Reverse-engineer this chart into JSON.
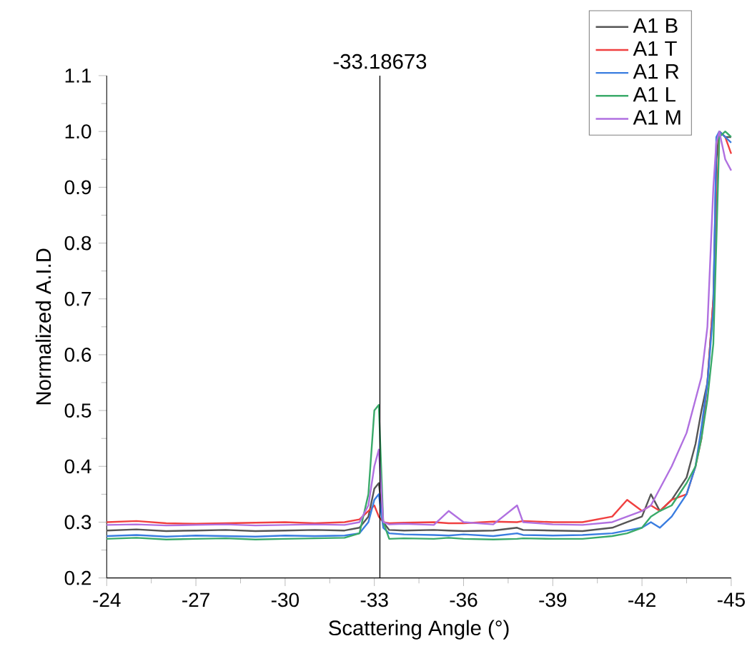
{
  "chart_data": {
    "type": "line",
    "xlabel": "Scattering Angle (°)",
    "ylabel": "Normalized A.I.D",
    "x": [
      -24,
      -25,
      -26,
      -27,
      -28,
      -29,
      -30,
      -31,
      -32,
      -32.5,
      -32.8,
      -33.0,
      -33.15,
      -33.3,
      -33.5,
      -34,
      -35,
      -35.5,
      -36,
      -37,
      -37.8,
      -38,
      -39,
      -40,
      -41,
      -41.5,
      -42,
      -42.3,
      -42.6,
      -43,
      -43.5,
      -43.8,
      -44,
      -44.2,
      -44.4,
      -44.5,
      -44.6,
      -44.8,
      -45
    ],
    "series": [
      {
        "name": "A1 B",
        "color": "#555555",
        "values": [
          0.285,
          0.287,
          0.284,
          0.285,
          0.286,
          0.284,
          0.285,
          0.286,
          0.285,
          0.29,
          0.31,
          0.36,
          0.37,
          0.3,
          0.286,
          0.285,
          0.286,
          0.285,
          0.284,
          0.285,
          0.29,
          0.286,
          0.285,
          0.284,
          0.29,
          0.3,
          0.31,
          0.35,
          0.32,
          0.34,
          0.38,
          0.44,
          0.5,
          0.55,
          0.7,
          0.95,
          1.0,
          0.99,
          0.99
        ]
      },
      {
        "name": "A1 T",
        "color": "#f04040",
        "values": [
          0.3,
          0.302,
          0.298,
          0.297,
          0.298,
          0.299,
          0.3,
          0.298,
          0.3,
          0.305,
          0.32,
          0.33,
          0.31,
          0.3,
          0.298,
          0.299,
          0.3,
          0.298,
          0.298,
          0.301,
          0.3,
          0.302,
          0.3,
          0.3,
          0.31,
          0.34,
          0.32,
          0.33,
          0.32,
          0.34,
          0.35,
          0.4,
          0.45,
          0.55,
          0.7,
          0.85,
          1.0,
          0.99,
          0.96
        ]
      },
      {
        "name": "A1 R",
        "color": "#3a7de0",
        "values": [
          0.275,
          0.277,
          0.274,
          0.276,
          0.275,
          0.274,
          0.276,
          0.275,
          0.276,
          0.28,
          0.3,
          0.34,
          0.35,
          0.29,
          0.28,
          0.278,
          0.277,
          0.276,
          0.278,
          0.275,
          0.28,
          0.277,
          0.276,
          0.277,
          0.28,
          0.285,
          0.29,
          0.3,
          0.29,
          0.31,
          0.35,
          0.4,
          0.47,
          0.55,
          0.68,
          0.99,
          1.0,
          0.99,
          0.98
        ]
      },
      {
        "name": "A1 L",
        "color": "#3aaa6a",
        "values": [
          0.27,
          0.272,
          0.269,
          0.27,
          0.271,
          0.269,
          0.27,
          0.271,
          0.272,
          0.28,
          0.35,
          0.5,
          0.51,
          0.3,
          0.27,
          0.271,
          0.27,
          0.272,
          0.27,
          0.269,
          0.27,
          0.271,
          0.27,
          0.27,
          0.275,
          0.28,
          0.29,
          0.31,
          0.32,
          0.33,
          0.37,
          0.4,
          0.45,
          0.52,
          0.62,
          0.8,
          0.99,
          1.0,
          0.99
        ]
      },
      {
        "name": "A1 M",
        "color": "#b070e0",
        "values": [
          0.295,
          0.296,
          0.294,
          0.295,
          0.296,
          0.294,
          0.295,
          0.296,
          0.295,
          0.3,
          0.33,
          0.4,
          0.43,
          0.3,
          0.296,
          0.297,
          0.295,
          0.32,
          0.3,
          0.296,
          0.33,
          0.3,
          0.296,
          0.295,
          0.3,
          0.31,
          0.32,
          0.33,
          0.36,
          0.4,
          0.46,
          0.52,
          0.56,
          0.65,
          0.9,
          0.98,
          1.0,
          0.95,
          0.93
        ]
      }
    ],
    "xlim": [
      -24,
      -45
    ],
    "xticks": [
      -24,
      -27,
      -30,
      -33,
      -36,
      -39,
      -42,
      -45
    ],
    "ylim": [
      0.2,
      1.1
    ],
    "yticks": [
      0.2,
      0.3,
      0.4,
      0.5,
      0.6,
      0.7,
      0.8,
      0.9,
      {
        "value": 1,
        "label": "1.0"
      },
      1.1
    ],
    "ref_lines": [
      {
        "axis": "x",
        "value": -33.18673,
        "label": "-33.18673",
        "color": "#000000"
      }
    ],
    "legend": "top right",
    "marker": "none",
    "line_style": "solid"
  }
}
